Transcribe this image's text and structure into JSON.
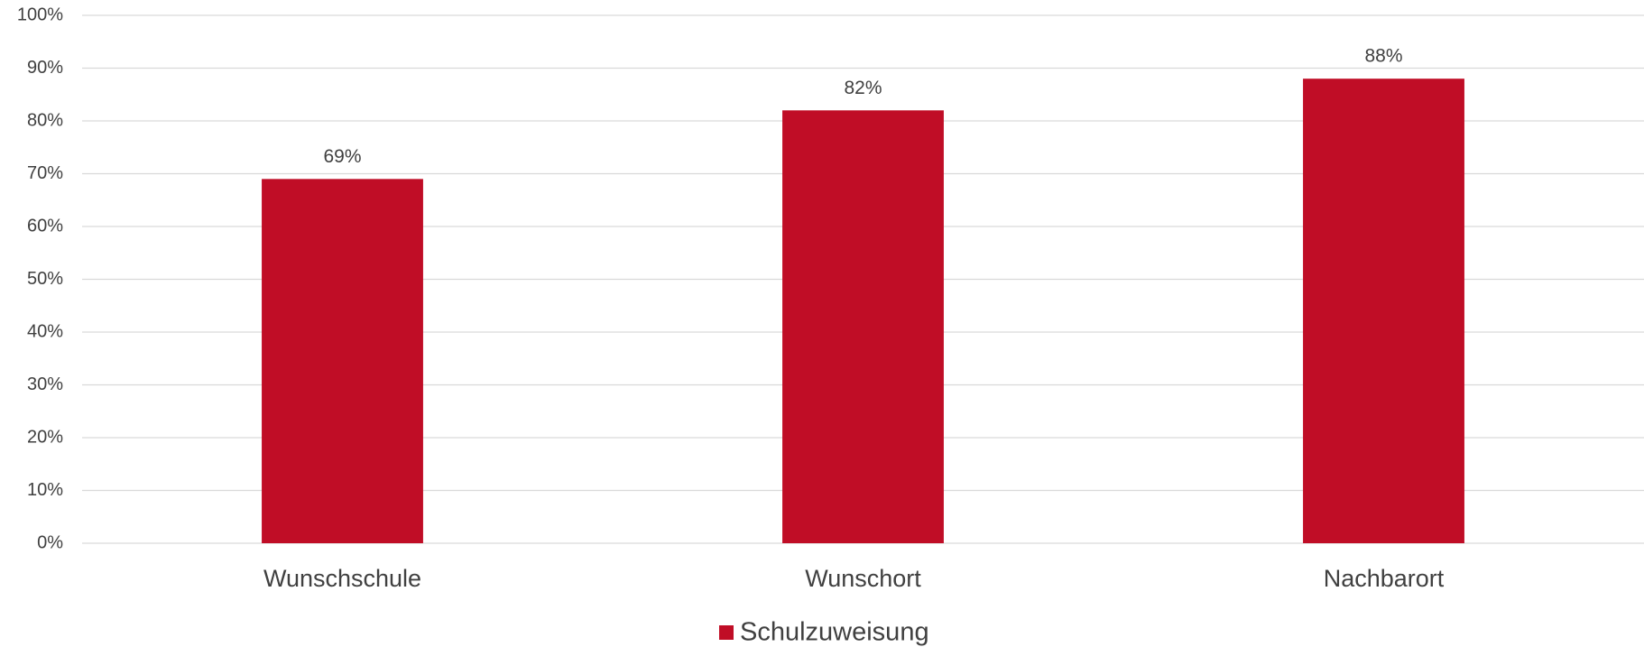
{
  "chart_data": {
    "type": "bar",
    "categories": [
      "Wunschschule",
      "Wunschort",
      "Nachbarort"
    ],
    "series": [
      {
        "name": "Schulzuweisung",
        "color": "#c00d26",
        "values": [
          69,
          82,
          88
        ],
        "value_labels": [
          "69%",
          "82%",
          "88%"
        ]
      }
    ],
    "ylim": [
      0,
      100
    ],
    "yticks": [
      {
        "value": 0,
        "label": "0%"
      },
      {
        "value": 10,
        "label": "10%"
      },
      {
        "value": 20,
        "label": "20%"
      },
      {
        "value": 30,
        "label": "30%"
      },
      {
        "value": 40,
        "label": "40%"
      },
      {
        "value": 50,
        "label": "50%"
      },
      {
        "value": 60,
        "label": "60%"
      },
      {
        "value": 70,
        "label": "70%"
      },
      {
        "value": 80,
        "label": "80%"
      },
      {
        "value": 90,
        "label": "90%"
      },
      {
        "value": 100,
        "label": "100%"
      }
    ],
    "grid": true,
    "legend": "bottom"
  }
}
